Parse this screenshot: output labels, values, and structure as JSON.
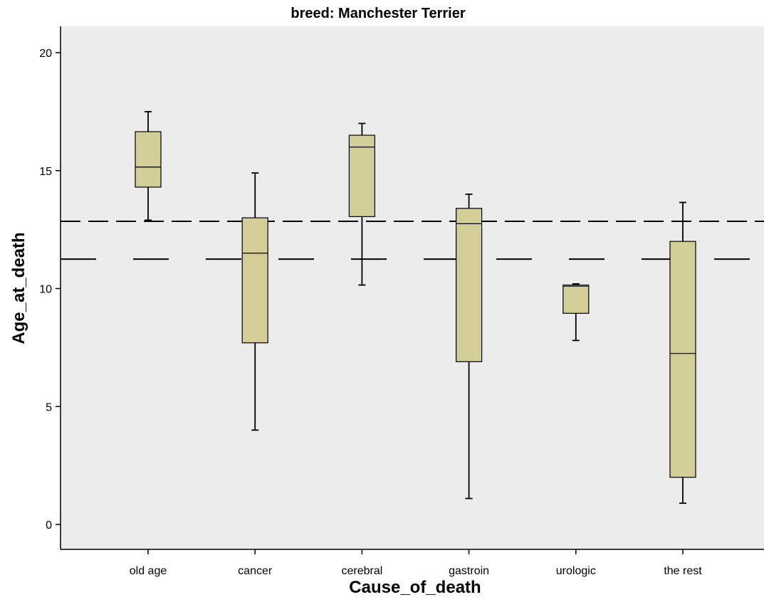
{
  "chart_data": {
    "type": "boxplot",
    "title": "breed: Manchester Terrier",
    "xlabel": "Cause_of_death",
    "ylabel": "Age_at_death",
    "ylim": [
      -1,
      21
    ],
    "yticks": [
      0,
      5,
      10,
      15,
      20
    ],
    "categories": [
      "old age",
      "cancer",
      "cerebral",
      "gastroin",
      "urologic",
      "the rest"
    ],
    "boxes": [
      {
        "category": "old age",
        "min": 12.9,
        "q1": 14.3,
        "median": 15.15,
        "q3": 16.65,
        "max": 17.5
      },
      {
        "category": "cancer",
        "min": 4.0,
        "q1": 7.7,
        "median": 11.5,
        "q3": 13.0,
        "max": 14.9
      },
      {
        "category": "cerebral",
        "min": 10.15,
        "q1": 13.05,
        "median": 16.0,
        "q3": 16.5,
        "max": 17.0
      },
      {
        "category": "gastroin",
        "min": 1.1,
        "q1": 6.9,
        "median": 12.75,
        "q3": 13.4,
        "max": 14.0
      },
      {
        "category": "urologic",
        "min": 7.8,
        "q1": 8.95,
        "median": 10.1,
        "q3": 10.15,
        "max": 10.2
      },
      {
        "category": "the rest",
        "min": 0.9,
        "q1": 2.0,
        "median": 7.25,
        "q3": 12.0,
        "max": 13.65
      }
    ],
    "reference_lines": [
      {
        "y": 12.85,
        "style": "short-dash"
      },
      {
        "y": 11.25,
        "style": "long-dash"
      }
    ],
    "grid": false,
    "colors": {
      "plot_background": "#ececec",
      "box_fill": "#d3cd97",
      "stroke": "#000000"
    }
  }
}
